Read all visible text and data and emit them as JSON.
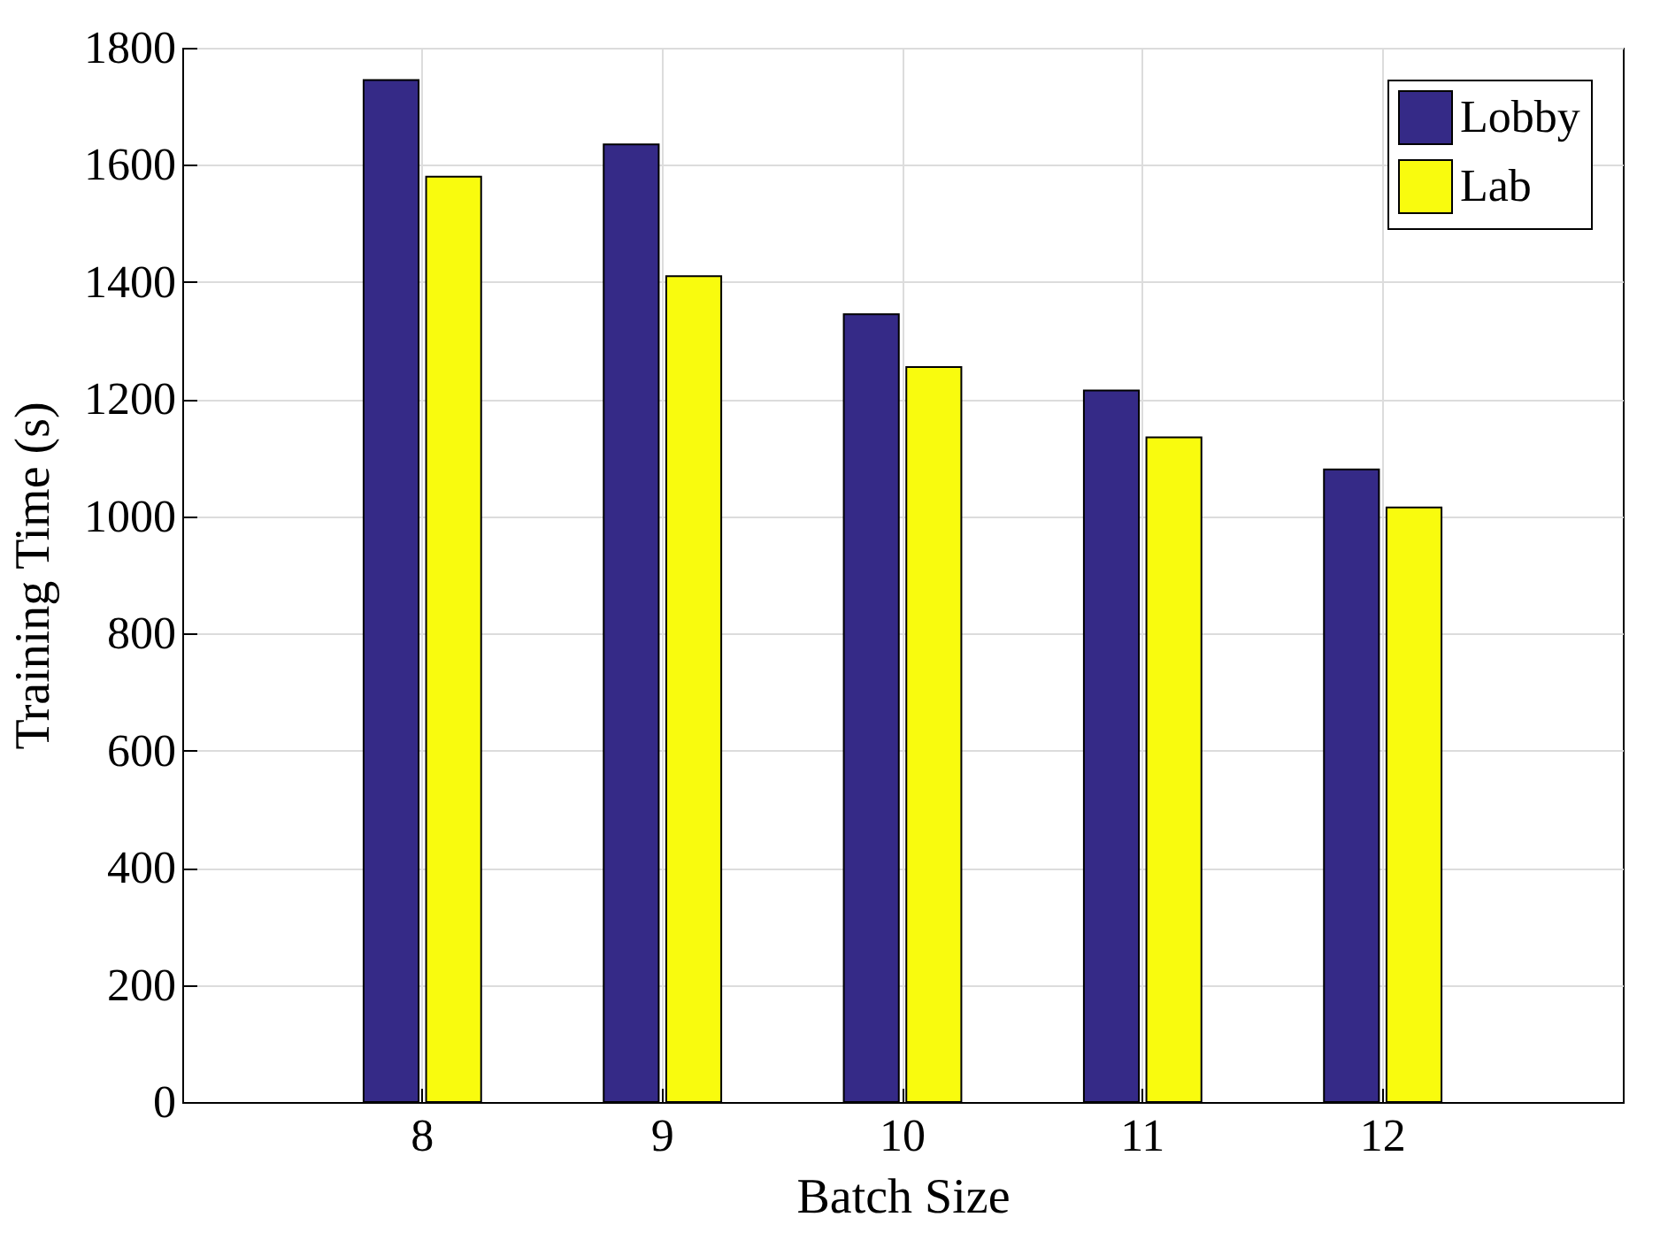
{
  "chart_data": {
    "type": "bar",
    "xlabel": "Batch Size",
    "ylabel": "Training Time (s)",
    "categories": [
      "8",
      "9",
      "10",
      "11",
      "12"
    ],
    "series": [
      {
        "name": "Lobby",
        "color": "#352a87",
        "values": [
          1745,
          1635,
          1345,
          1215,
          1080
        ]
      },
      {
        "name": "Lab",
        "color": "#f9fb0e",
        "values": [
          1580,
          1410,
          1255,
          1135,
          1015
        ]
      }
    ],
    "ylim": [
      0,
      1800
    ],
    "yticks": [
      0,
      200,
      400,
      600,
      800,
      1000,
      1200,
      1400,
      1600,
      1800
    ],
    "grid": true,
    "legend": "top right"
  }
}
